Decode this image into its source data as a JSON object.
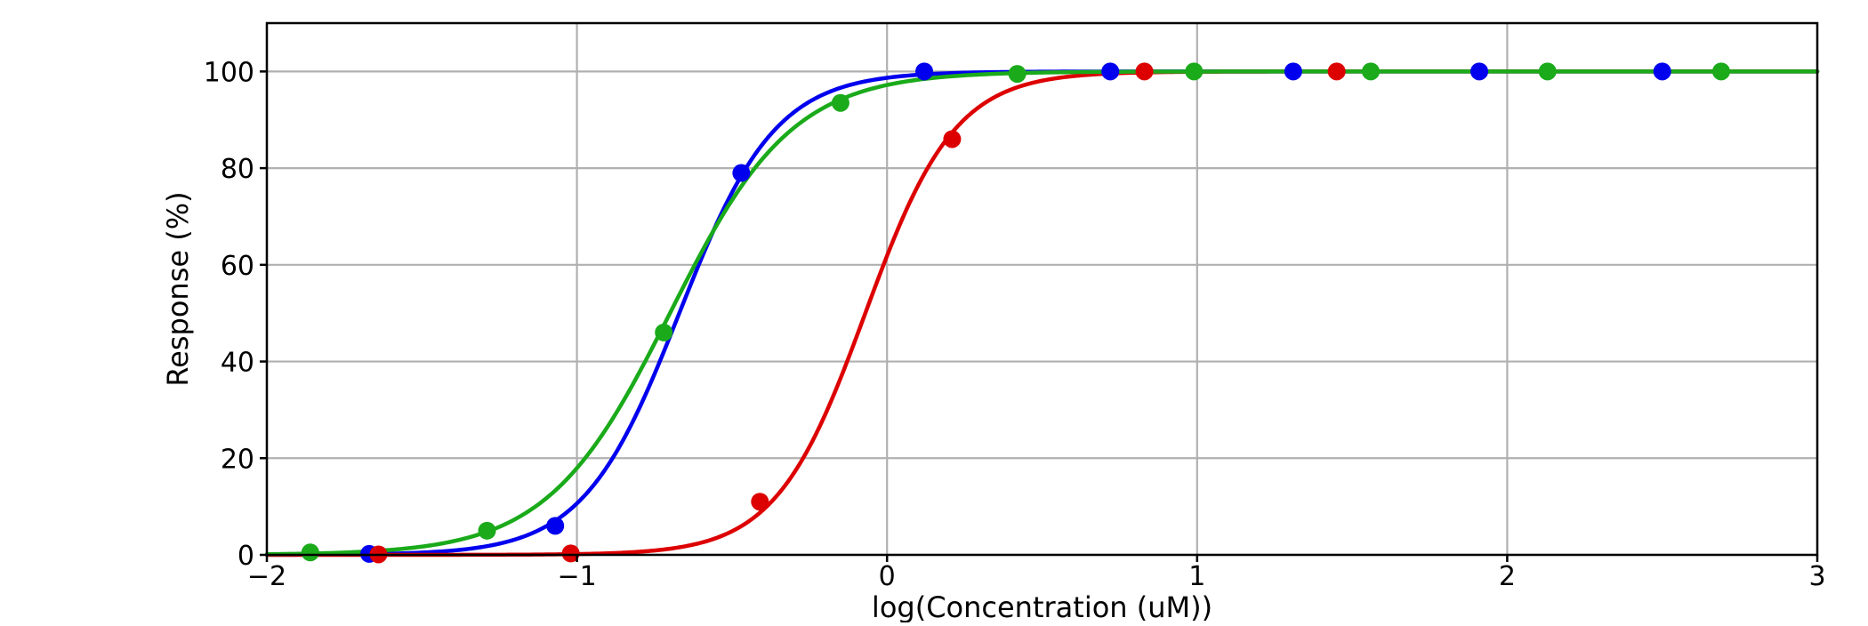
{
  "chart_data": {
    "type": "line",
    "title": "",
    "xlabel": "log(Concentration (uM))",
    "ylabel": "Response (%)",
    "xlim": [
      -2,
      3
    ],
    "ylim": [
      0,
      110
    ],
    "x_ticks": [
      -2,
      -1,
      0,
      1,
      2,
      3
    ],
    "y_ticks": [
      0,
      20,
      40,
      60,
      80,
      100
    ],
    "x_tick_labels": [
      "−2",
      "−1",
      "0",
      "1",
      "2",
      "3"
    ],
    "y_tick_labels": [
      "0",
      "20",
      "40",
      "60",
      "80",
      "100"
    ],
    "grid": true,
    "legend": "none",
    "series": [
      {
        "color": "#0000ee",
        "curve": {
          "model": "hill",
          "bottom": 0,
          "top": 100,
          "log_ec50": -0.67,
          "hill_slope": 2.8
        },
        "x": [
          -1.67,
          -1.07,
          -0.47,
          0.12,
          0.72,
          1.31,
          1.91,
          2.5
        ],
        "y": [
          0.2,
          6,
          79,
          100,
          100,
          100,
          100,
          100
        ]
      },
      {
        "color": "#dd0000",
        "curve": {
          "model": "hill",
          "bottom": 0,
          "top": 100,
          "log_ec50": -0.07,
          "hill_slope": 3.0
        },
        "x": [
          -1.64,
          -1.02,
          -0.41,
          0.21,
          0.83,
          1.45
        ],
        "y": [
          0.1,
          0.3,
          11,
          86,
          100,
          100
        ]
      },
      {
        "color": "#1aaa1a",
        "curve": {
          "model": "hill",
          "bottom": 0,
          "top": 100,
          "log_ec50": -0.7,
          "hill_slope": 2.2
        },
        "x": [
          -1.86,
          -1.29,
          -0.72,
          -0.15,
          0.42,
          0.99,
          1.56,
          2.13,
          2.69
        ],
        "y": [
          0.5,
          5,
          46,
          93.5,
          99.5,
          100,
          100,
          100,
          100
        ]
      }
    ]
  }
}
